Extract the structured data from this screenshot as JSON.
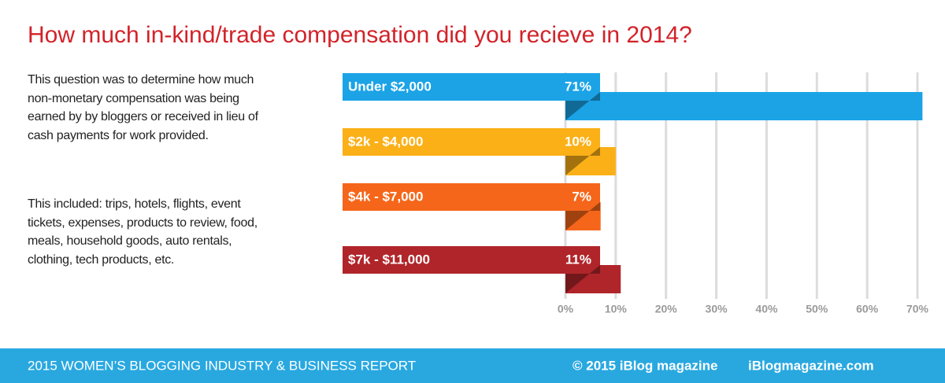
{
  "chart_data": {
    "type": "bar",
    "orientation": "horizontal",
    "title": "How much in-kind/trade compensation did you recieve in 2014?",
    "categories": [
      "Under $2,000",
      "$2k - $4,000",
      "$4k - $7,000",
      "$7k - $11,000"
    ],
    "values": [
      71,
      10,
      7,
      11
    ],
    "value_labels": [
      "71%",
      "10%",
      "7%",
      "11%"
    ],
    "colors": [
      "#1ba3e6",
      "#fbb017",
      "#f5661a",
      "#b0252a"
    ],
    "xlim": [
      0,
      70
    ],
    "xticks": [
      {
        "value": 0,
        "label": "0%"
      },
      {
        "value": 10,
        "label": "10%"
      },
      {
        "value": 20,
        "label": "20%"
      },
      {
        "value": 30,
        "label": "30%"
      },
      {
        "value": 40,
        "label": "40%"
      },
      {
        "value": 50,
        "label": "50%"
      },
      {
        "value": 60,
        "label": "60%"
      },
      {
        "value": 70,
        "label": "70%"
      }
    ],
    "grid": true
  },
  "description": [
    "This question was to determine how much non-monetary compensation was being earned by by bloggers or received in lieu of cash payments for work provided.",
    "This included: trips, hotels, flights, event tickets, expenses, products to review, food, meals, household goods, auto rentals, clothing, tech products, etc."
  ],
  "footer": {
    "report": "2015 WOMEN’S BLOGGING INDUSTRY & BUSINESS REPORT",
    "copyright": "© 2015 iBlog magazine",
    "site": "iBlogmagazine.com"
  }
}
